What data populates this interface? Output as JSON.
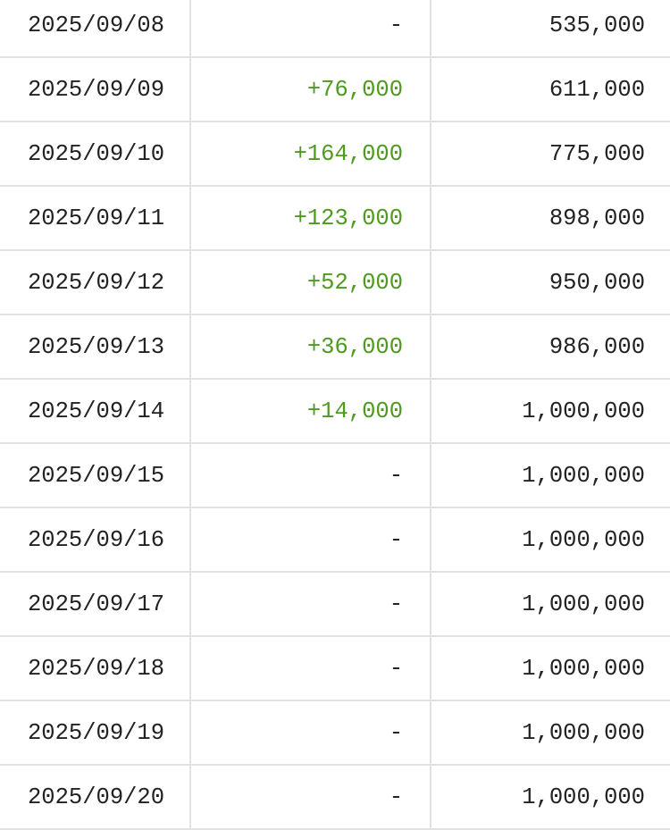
{
  "colors": {
    "positive": "#4e9a1e",
    "text": "#222222"
  },
  "rows": [
    {
      "date": "2025/09/08",
      "change": "-",
      "total": "535,000"
    },
    {
      "date": "2025/09/09",
      "change": "+76,000",
      "total": "611,000"
    },
    {
      "date": "2025/09/10",
      "change": "+164,000",
      "total": "775,000"
    },
    {
      "date": "2025/09/11",
      "change": "+123,000",
      "total": "898,000"
    },
    {
      "date": "2025/09/12",
      "change": "+52,000",
      "total": "950,000"
    },
    {
      "date": "2025/09/13",
      "change": "+36,000",
      "total": "986,000"
    },
    {
      "date": "2025/09/14",
      "change": "+14,000",
      "total": "1,000,000"
    },
    {
      "date": "2025/09/15",
      "change": "-",
      "total": "1,000,000"
    },
    {
      "date": "2025/09/16",
      "change": "-",
      "total": "1,000,000"
    },
    {
      "date": "2025/09/17",
      "change": "-",
      "total": "1,000,000"
    },
    {
      "date": "2025/09/18",
      "change": "-",
      "total": "1,000,000"
    },
    {
      "date": "2025/09/19",
      "change": "-",
      "total": "1,000,000"
    },
    {
      "date": "2025/09/20",
      "change": "-",
      "total": "1,000,000"
    }
  ]
}
